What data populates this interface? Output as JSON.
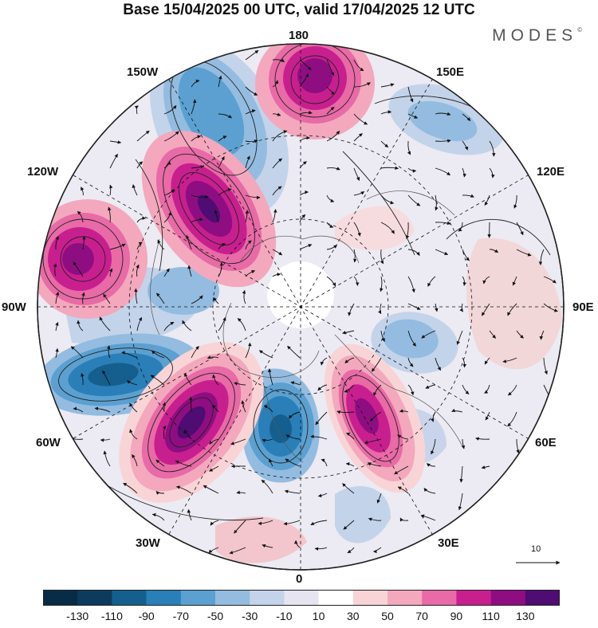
{
  "title": "Base 15/04/2025 00 UTC, valid 17/04/2025 12 UTC",
  "brand": "MODES",
  "brand_mark": "©",
  "longitude_labels": {
    "lon_180": "180",
    "lon_150w": "150W",
    "lon_150e": "150E",
    "lon_120w": "120W",
    "lon_120e": "120E",
    "lon_90w": "90W",
    "lon_90e": "90E",
    "lon_60w": "60W",
    "lon_60e": "60E",
    "lon_30w": "30W",
    "lon_30e": "30E",
    "lon_0": "0"
  },
  "vector_scale_label": "10",
  "colorbar": {
    "ticks": [
      "-130",
      "-110",
      "-90",
      "-70",
      "-50",
      "-30",
      "-10",
      "10",
      "30",
      "50",
      "70",
      "90",
      "110",
      "130"
    ],
    "colors": [
      "#0d3b5e",
      "#155f8f",
      "#2a7fb8",
      "#5ba0d0",
      "#93bce0",
      "#c3d3ea",
      "#e6e4f0",
      "#ffffff",
      "#f9d4d6",
      "#f3a8bd",
      "#e86aa6",
      "#c81f8f",
      "#8e0e82",
      "#4f0c73"
    ]
  },
  "map": {
    "projection": "north-polar-stereographic",
    "anomaly_centers": [
      {
        "name": "positive-anomaly-north-pacific",
        "lon": 180,
        "sign": "positive",
        "strength": 110
      },
      {
        "name": "positive-anomaly-alaska",
        "lon": -150,
        "sign": "positive",
        "strength": 130
      },
      {
        "name": "positive-anomaly-west-canada",
        "lon": -115,
        "sign": "positive",
        "strength": 110
      },
      {
        "name": "positive-anomaly-north-atlantic",
        "lon": -45,
        "sign": "positive",
        "strength": 130
      },
      {
        "name": "positive-anomaly-scandinavia",
        "lon": 20,
        "sign": "positive",
        "strength": 110
      },
      {
        "name": "negative-anomaly-bering",
        "lon": -170,
        "sign": "negative",
        "strength": -70
      },
      {
        "name": "negative-anomaly-east-canada",
        "lon": -70,
        "sign": "negative",
        "strength": -110
      },
      {
        "name": "negative-anomaly-greenland",
        "lon": -15,
        "sign": "negative",
        "strength": -110
      },
      {
        "name": "negative-anomaly-siberia",
        "lon": 150,
        "sign": "negative",
        "strength": -50
      },
      {
        "name": "negative-anomaly-ural",
        "lon": 65,
        "sign": "negative",
        "strength": -70
      }
    ]
  }
}
